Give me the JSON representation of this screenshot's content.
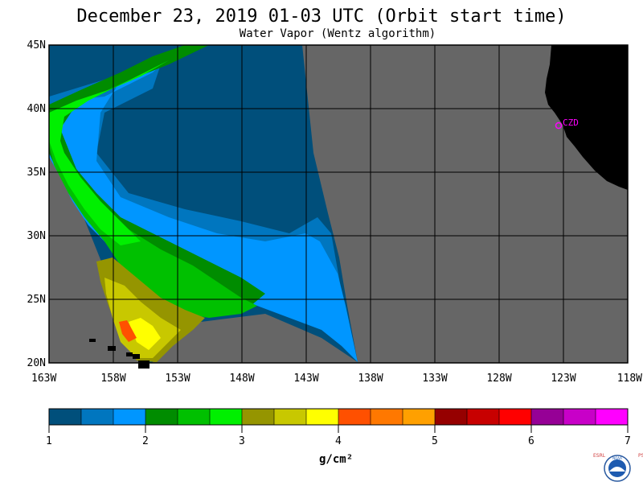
{
  "title": "December 23, 2019  01-03 UTC  (Orbit start time)",
  "subtitle": "Water Vapor (Wentz algorithm)",
  "map": {
    "lat_labels": [
      "45N",
      "40N",
      "35N",
      "30N",
      "25N",
      "20N"
    ],
    "lat_values": [
      45,
      40,
      35,
      30,
      25,
      20
    ],
    "lon_labels": [
      "163W",
      "158W",
      "153W",
      "148W",
      "143W",
      "138W",
      "133W",
      "128W",
      "123W",
      "118W"
    ],
    "lon_values": [
      -163,
      -158,
      -153,
      -148,
      -143,
      -138,
      -133,
      -128,
      -123,
      -118
    ],
    "lat_range": [
      20,
      45
    ],
    "lon_range": [
      -163,
      -118
    ],
    "station_label": "CZD",
    "no_data_color": "#666666",
    "land_color": "#000000",
    "grid": true
  },
  "colorbar": {
    "colors": [
      "#004f7b",
      "#0076bf",
      "#0096ff",
      "#008c00",
      "#00c000",
      "#00f000",
      "#959500",
      "#c8c800",
      "#ffff00",
      "#ff5000",
      "#ff7800",
      "#ffa000",
      "#960000",
      "#c80000",
      "#ff0000",
      "#960096",
      "#c800c8",
      "#ff00ff"
    ],
    "tick_labels": [
      "1",
      "2",
      "3",
      "4",
      "5",
      "6",
      "7"
    ],
    "unit": "g/cm²"
  },
  "logo": {
    "text": "NOAA",
    "left_letters": "ESRL",
    "right_letters": "PSD"
  }
}
